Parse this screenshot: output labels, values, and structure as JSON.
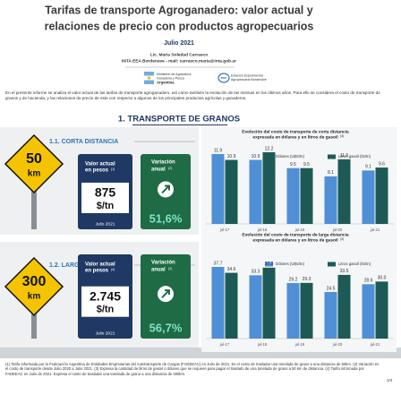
{
  "header": {
    "title_lines": [
      "Tarifas de transporte Agroganadero: valor actual y",
      "relaciones de precio con productos agropecuarios"
    ],
    "date": "Julio 2021",
    "author": "Lic. María Soledad Carrasco",
    "affiliation": "INTA EEA Bordenave - mail: carrasco.maria@inta.gob.ar",
    "logo_ministry": [
      "Ministerio de Agricultura,",
      "Ganadería y Pesca",
      "Argentina"
    ],
    "logo_inta": [
      "Estación Experimental",
      "Agropecuaria Bordenave"
    ]
  },
  "intro": "En el presente informe se analiza el valor actual de las tarifas de transporte agroganadero, así como también la evolución de las mismas en los últimos años. Para ello se considera el costo de transporte de granos y de hacienda, y las relaciones de precio de este con respecto a algunos de los principales productos agrícolas y ganaderos.",
  "section_title": "1. TRANSPORTE DE GRANOS",
  "subsections": [
    {
      "title": "1.1. CORTA DISTANCIA",
      "sign": [
        "50",
        "km"
      ],
      "value_box": {
        "label": [
          "Valor actual",
          "en pesos"
        ],
        "note": "(1)",
        "value": "875",
        "unit": "$/tn",
        "date": "Julio 2021"
      },
      "variation": {
        "label": [
          "Variación",
          "anual"
        ],
        "note": "(2)",
        "value": "51,6%"
      },
      "chart": {
        "type": "bar",
        "title": [
          "Evolución del costo de transporte de corta distancia",
          "expresada en dólares y en litros de gasoil"
        ],
        "title_note": "(3)",
        "categories": [
          "jul-17",
          "jul-18",
          "jul-19",
          "jul-20",
          "jul-21"
        ],
        "series": [
          {
            "name": "Dólares (U$S/tn)",
            "color": "#4f8fd6",
            "values": [
              11.9,
              10.9,
              9.5,
              8.1,
              9.1
            ]
          },
          {
            "name": "Litros gasoil (lts/tn)",
            "color": "#1d5a55",
            "values": [
              10.9,
              12.2,
              9.5,
              11.0,
              9.6
            ],
            "value_labels": [
              "10.9",
              "12.2",
              "9.5",
              "11.0",
              "9.6"
            ]
          }
        ]
      }
    },
    {
      "title": "1.2. LARGA DISTANCIA",
      "sign": [
        "300",
        "km"
      ],
      "value_box": {
        "label": [
          "Valor actual",
          "en pesos"
        ],
        "note": "(4)",
        "value": "2.745",
        "unit": "$/tn",
        "date": "Julio 2021"
      },
      "variation": {
        "label": [
          "Variación",
          "anual"
        ],
        "note": "(2)",
        "value": "56,7%"
      },
      "chart": {
        "type": "bar",
        "title": [
          "Evolución del costo de transporte de larga distancia",
          "expresada en dólares y en litros de gasoil"
        ],
        "title_note": "(3)",
        "categories": [
          "jul-17",
          "jul-18",
          "jul-19",
          "jul-20",
          "jul-21"
        ],
        "series": [
          {
            "name": "Dólares (U$S/tn)",
            "color": "#4f8fd6",
            "values": [
              37.7,
              33.3,
              29.2,
              24.5,
              28.6
            ]
          },
          {
            "name": "Litros gasoil (lts/tn)",
            "color": "#1d5a55",
            "values": [
              34.6,
              37.3,
              29.3,
              33.5,
              30.0
            ],
            "value_labels": [
              "34.6",
              "37.3",
              "29.3",
              "33.5",
              "30.0"
            ]
          }
        ]
      }
    }
  ],
  "footnotes": [
    "(1) Tarifa informada por la Federación Argentina de Entidades Empresarias del Autotransporte de Cargas (FADEEAC) en Julio de 2021. Es el costo de trasladar una tonelada de grano a una distancia de 50km.",
    "(2) Variación en el costo de transporte desde Julio 2020 a Julio 2021.",
    "(3) Expresa la cantidad de litros de gasoil o dólares que se requiere para pagar el traslado de una tonelada de grano a 50 km de distancia.",
    "(4) Tarifa informada por FADEEAC en Julio de 2021. Expresa el costo de trasladar una tonelada de grano a una distancia de 300km."
  ],
  "page_number": "1/4"
}
